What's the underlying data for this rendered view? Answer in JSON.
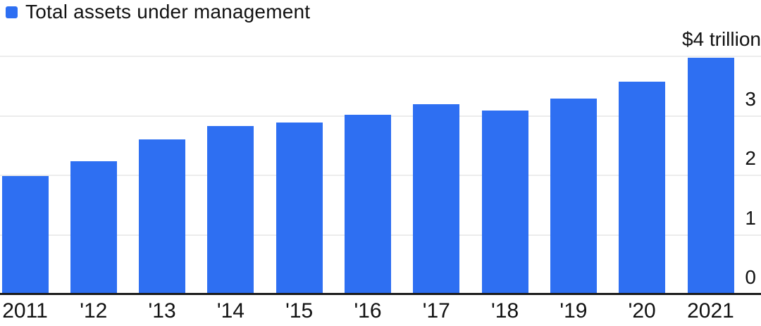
{
  "legend": {
    "label": "Total assets under management",
    "swatch_icon": "blue-square-icon"
  },
  "chart_data": {
    "type": "bar",
    "title": "Total assets under management",
    "categories": [
      "2011",
      "'12",
      "'13",
      "'14",
      "'15",
      "'16",
      "'17",
      "'18",
      "'19",
      "'20",
      "2021"
    ],
    "values": [
      1.99,
      2.24,
      2.6,
      2.83,
      2.89,
      3.02,
      3.19,
      3.09,
      3.29,
      3.57,
      3.98
    ],
    "xlabel": "",
    "ylabel": "",
    "ylim": [
      0,
      4
    ],
    "y_ticks": [
      {
        "value": 4,
        "label": "$4 trillion"
      },
      {
        "value": 3,
        "label": "3"
      },
      {
        "value": 2,
        "label": "2"
      },
      {
        "value": 1,
        "label": "1"
      },
      {
        "value": 0,
        "label": "0"
      }
    ],
    "grid": true,
    "legend_position": "top-left",
    "bar_color": "#2E6FF2"
  },
  "colors": {
    "bar": "#2E6FF2",
    "gridline": "#ECECEC",
    "axis_line": "#1A1A1A",
    "text": "#121212",
    "background": "#FFFFFF"
  }
}
